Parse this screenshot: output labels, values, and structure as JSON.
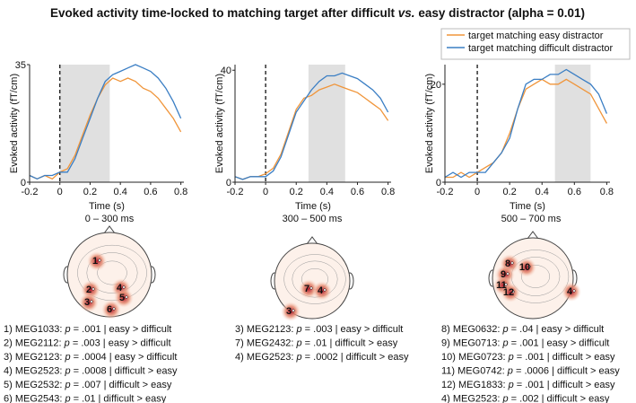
{
  "title": [
    "Evoked activity time-locked to matching target after difficult",
    "vs.",
    "easy distractor (alpha = 0.01)"
  ],
  "chart_data": [
    {
      "type": "line",
      "xlabel": "Time (s)",
      "ylabel": "Evoked activity (fT/cm)",
      "x": [
        -0.2,
        -0.15,
        -0.1,
        -0.05,
        0,
        0.05,
        0.1,
        0.15,
        0.2,
        0.25,
        0.3,
        0.35,
        0.4,
        0.45,
        0.5,
        0.55,
        0.6,
        0.65,
        0.7,
        0.75,
        0.8
      ],
      "series": [
        {
          "color": "#f0953a",
          "values": [
            2,
            1,
            2,
            1,
            3,
            4,
            8,
            14,
            20,
            25,
            29,
            31,
            30,
            31,
            30,
            28,
            27,
            25,
            22,
            19,
            15
          ]
        },
        {
          "color": "#3a7ec4",
          "values": [
            2,
            1,
            2,
            2,
            3,
            3,
            7,
            13,
            19,
            25,
            30,
            32,
            33,
            34,
            35,
            34,
            33,
            31,
            28,
            24,
            19
          ]
        }
      ],
      "xlim": [
        -0.2,
        0.82
      ],
      "xticks": [
        -0.2,
        0,
        0.2,
        0.4,
        0.6,
        0.8
      ],
      "ylim": [
        0,
        35
      ],
      "yticks": [
        0,
        35
      ],
      "shade": [
        0,
        0.33
      ],
      "event_line": 0
    },
    {
      "type": "line",
      "xlabel": "Time (s)",
      "ylabel": "Evoked activity (fT/cm)",
      "x": [
        -0.2,
        -0.15,
        -0.1,
        -0.05,
        0,
        0.05,
        0.1,
        0.15,
        0.2,
        0.25,
        0.3,
        0.35,
        0.4,
        0.45,
        0.5,
        0.55,
        0.6,
        0.65,
        0.7,
        0.75,
        0.8
      ],
      "series": [
        {
          "color": "#f0953a",
          "values": [
            2,
            1,
            2,
            2,
            3,
            5,
            10,
            18,
            26,
            30,
            31,
            33,
            34,
            35,
            34,
            33,
            32,
            30,
            28,
            26,
            22
          ]
        },
        {
          "color": "#3a7ec4",
          "values": [
            2,
            1,
            2,
            2,
            2,
            4,
            9,
            17,
            25,
            29,
            33,
            36,
            38,
            38,
            39,
            38,
            37,
            35,
            33,
            30,
            25
          ]
        }
      ],
      "xlim": [
        -0.2,
        0.82
      ],
      "xticks": [
        -0.2,
        0,
        0.2,
        0.4,
        0.6,
        0.8
      ],
      "ylim": [
        0,
        42
      ],
      "yticks": [
        0,
        40
      ],
      "shade": [
        0.28,
        0.52
      ],
      "event_line": 0
    },
    {
      "type": "line",
      "xlabel": "Time (s)",
      "ylabel": "Evoked activity (fT/cm)",
      "x": [
        -0.2,
        -0.15,
        -0.1,
        -0.05,
        0,
        0.05,
        0.1,
        0.15,
        0.2,
        0.25,
        0.3,
        0.35,
        0.4,
        0.45,
        0.5,
        0.55,
        0.6,
        0.65,
        0.7,
        0.75,
        0.8
      ],
      "series": [
        {
          "name": "target matching easy distractor",
          "color": "#f0953a",
          "values": [
            1,
            1,
            2,
            1,
            2,
            3,
            4,
            6,
            10,
            15,
            19,
            20,
            21,
            20,
            20,
            21,
            20,
            19,
            18,
            15,
            12
          ]
        },
        {
          "name": "target matching difficult distractor",
          "color": "#3a7ec4",
          "values": [
            1,
            2,
            1,
            2,
            2,
            2,
            4,
            6,
            9,
            15,
            20,
            21,
            21,
            22,
            22,
            23,
            22,
            21,
            20,
            18,
            14
          ]
        }
      ],
      "xlim": [
        -0.2,
        0.82
      ],
      "xticks": [
        -0.2,
        0,
        0.2,
        0.4,
        0.6,
        0.8
      ],
      "ylim": [
        0,
        24
      ],
      "yticks": [
        0,
        20
      ],
      "shade": [
        0.48,
        0.7
      ],
      "event_line": 0
    }
  ],
  "topomaps": [
    {
      "window": "0 – 300 ms",
      "markers": [
        "1",
        "2",
        "3",
        "4",
        "5",
        "6"
      ],
      "list": [
        {
          "prefix": "1) MEG1033:",
          "stat": "p",
          "rest": "= .001 | easy > difficult"
        },
        {
          "prefix": "2) MEG2112:",
          "stat": "p",
          "rest": "= .003 | easy > difficult"
        },
        {
          "prefix": "3) MEG2123:",
          "stat": "p",
          "rest": "= .0004 | easy > difficult"
        },
        {
          "prefix": "4) MEG2523:",
          "stat": "p",
          "rest": "= .0008 | difficult > easy"
        },
        {
          "prefix": "5) MEG2532:",
          "stat": "p",
          "rest": "= .007 | difficult > easy"
        },
        {
          "prefix": "6) MEG2543:",
          "stat": "p",
          "rest": "= .01 | difficult > easy"
        }
      ]
    },
    {
      "window": "300 – 500 ms",
      "markers": [
        "7",
        "4",
        "3"
      ],
      "list": [
        {
          "prefix": "3) MEG2123:",
          "stat": "p",
          "rest": "= .003 | easy > difficult"
        },
        {
          "prefix": "7) MEG2432:",
          "stat": "p",
          "rest": "= .01 | difficult > easy"
        },
        {
          "prefix": "4) MEG2523:",
          "stat": "p",
          "rest": "= .0002 | difficult > easy"
        }
      ]
    },
    {
      "window": "500 – 700 ms",
      "markers": [
        "8",
        "10",
        "9",
        "11",
        "12",
        "4"
      ],
      "list": [
        {
          "prefix": "8) MEG0632:",
          "stat": "p",
          "rest": "= .04 | easy > difficult"
        },
        {
          "prefix": "9) MEG0713:",
          "stat": "p",
          "rest": "= .001 | easy > difficult"
        },
        {
          "prefix": "10) MEG0723:",
          "stat": "p",
          "rest": "= .001 | difficult > easy"
        },
        {
          "prefix": "11) MEG0742:",
          "stat": "p",
          "rest": "= .0006 | difficult > easy"
        },
        {
          "prefix": "12) MEG1833:",
          "stat": "p",
          "rest": "= .001 | difficult > easy"
        },
        {
          "prefix": "4) MEG2523:",
          "stat": "p",
          "rest": "= .002 | difficult > easy"
        }
      ]
    }
  ]
}
